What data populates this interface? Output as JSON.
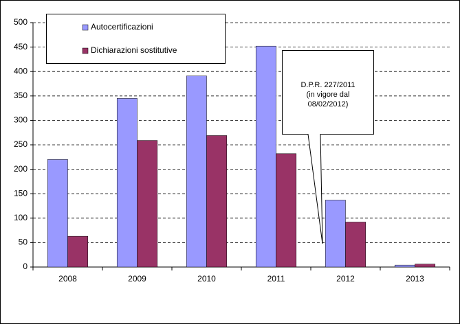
{
  "chart_data": {
    "type": "bar",
    "categories": [
      "2008",
      "2009",
      "2010",
      "2011",
      "2012",
      "2013"
    ],
    "series": [
      {
        "name": "Autocertificazioni",
        "color": "#9999ff",
        "values": [
          220,
          345,
          391,
          452,
          137,
          4
        ]
      },
      {
        "name": "Dichiarazioni sostitutive",
        "color": "#993366",
        "values": [
          63,
          259,
          269,
          232,
          92,
          6
        ]
      }
    ],
    "ylim": [
      0,
      500
    ],
    "yticks": [
      0,
      50,
      100,
      150,
      200,
      250,
      300,
      350,
      400,
      450,
      500
    ],
    "grid": true,
    "annotation": [
      "D.P.R. 227/2011",
      "(in vigore dal",
      "08/02/2012)"
    ]
  }
}
